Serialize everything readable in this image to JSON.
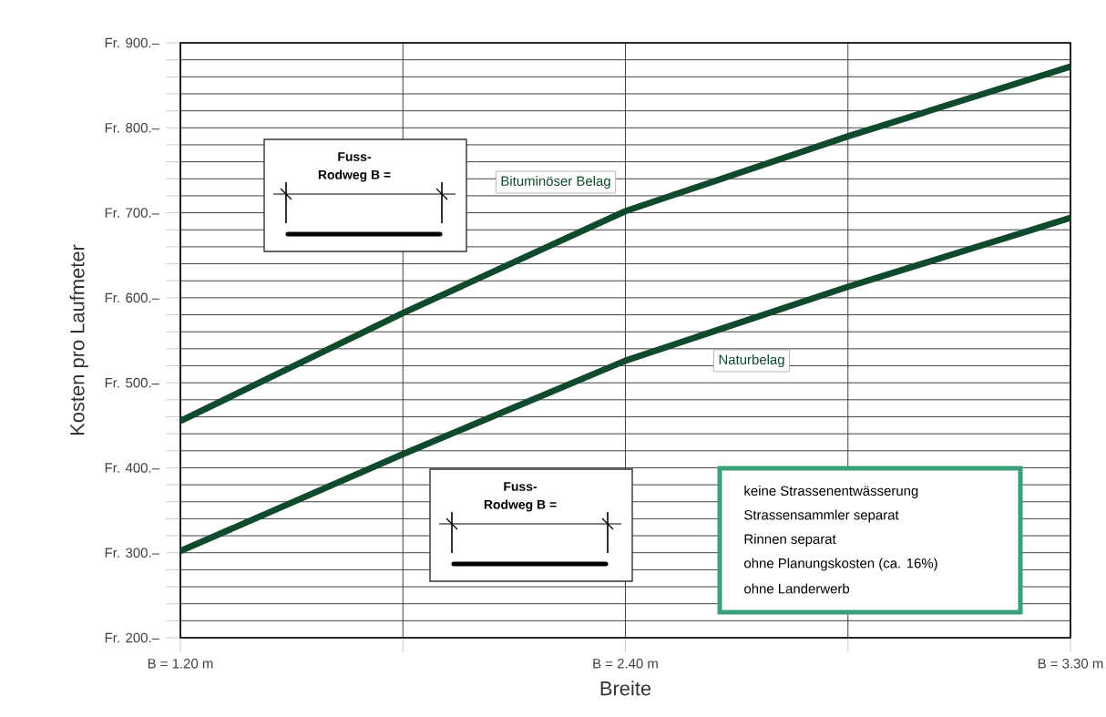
{
  "chart_data": {
    "type": "line",
    "xlabel": "Breite",
    "ylabel": "Kosten pro Laufmeter",
    "categories": [
      "B = 1.20 m",
      null,
      "B = 2.40 m",
      null,
      "B = 3.30 m"
    ],
    "series": [
      {
        "name": "Bituminöser Belag",
        "color": "#0f4a2c",
        "values": [
          455,
          582,
          702,
          790,
          872
        ]
      },
      {
        "name": "Naturbelag",
        "color": "#0f4a2c",
        "values": [
          302,
          416,
          526,
          613,
          694
        ]
      }
    ],
    "ylim": [
      200,
      900
    ],
    "yticks": [
      {
        "value": 200,
        "label": "Fr. 200.–"
      },
      {
        "value": 220,
        "label": null
      },
      {
        "value": 240,
        "label": null
      },
      {
        "value": 260,
        "label": null
      },
      {
        "value": 280,
        "label": null
      },
      {
        "value": 300,
        "label": "Fr. 300.–"
      },
      {
        "value": 320,
        "label": null
      },
      {
        "value": 340,
        "label": null
      },
      {
        "value": 360,
        "label": null
      },
      {
        "value": 380,
        "label": null
      },
      {
        "value": 400,
        "label": "Fr. 400.–"
      },
      {
        "value": 420,
        "label": null
      },
      {
        "value": 440,
        "label": null
      },
      {
        "value": 460,
        "label": null
      },
      {
        "value": 480,
        "label": null
      },
      {
        "value": 500,
        "label": "Fr. 500.–"
      },
      {
        "value": 520,
        "label": null
      },
      {
        "value": 540,
        "label": null
      },
      {
        "value": 560,
        "label": null
      },
      {
        "value": 580,
        "label": null
      },
      {
        "value": 600,
        "label": "Fr. 600.–"
      },
      {
        "value": 620,
        "label": null
      },
      {
        "value": 640,
        "label": null
      },
      {
        "value": 660,
        "label": null
      },
      {
        "value": 680,
        "label": null
      },
      {
        "value": 700,
        "label": "Fr. 700.–"
      },
      {
        "value": 720,
        "label": null
      },
      {
        "value": 740,
        "label": null
      },
      {
        "value": 760,
        "label": null
      },
      {
        "value": 780,
        "label": null
      },
      {
        "value": 800,
        "label": "Fr. 800.–"
      },
      {
        "value": 820,
        "label": null
      },
      {
        "value": 840,
        "label": null
      },
      {
        "value": 860,
        "label": null
      },
      {
        "value": 880,
        "label": null
      },
      {
        "value": 900,
        "label": "Fr. 900.–"
      }
    ],
    "grid": true,
    "annotations": [
      "Fuss-",
      "Rodweg B =",
      "Fuss-",
      "Rodweg B =",
      "keine Strassenentwässerung",
      "Strassensammler separat",
      "Rinnen separat",
      "ohne Planungskosten (ca. 16%)",
      "ohne Landerwerb"
    ]
  }
}
